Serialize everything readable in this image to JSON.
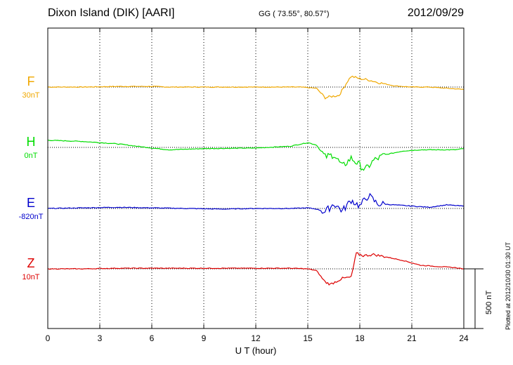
{
  "header": {
    "station": "Dixon Island (DIK)  [AARI]",
    "coords": "GG ( 73.55°,  80.57°)",
    "date": "2012/09/29"
  },
  "plotted_note": "Plotted at 2012/10/30 01:30 UT",
  "scale_label": "500 nT",
  "colors": {
    "F": "#f0a800",
    "H": "#00dd00",
    "E": "#0000cc",
    "Z": "#dd0000"
  },
  "chart_data": {
    "type": "line",
    "xlabel": "U T (hour)",
    "xlim": [
      0,
      24
    ],
    "xticks": [
      "0",
      "3",
      "6",
      "9",
      "12",
      "15",
      "18",
      "21",
      "24"
    ],
    "scale_bar_nT": 500,
    "series": [
      {
        "name": "F",
        "baseline_label": "30nT",
        "x": [
          0,
          2,
          4,
          6,
          7,
          9,
          12,
          14.5,
          15.5,
          16,
          16.3,
          16.8,
          17.3,
          17.5,
          18,
          18.5,
          19,
          20,
          21,
          22,
          23,
          24
        ],
        "values": [
          0,
          0,
          5,
          5,
          0,
          0,
          0,
          0,
          -10,
          -90,
          -80,
          -70,
          50,
          90,
          70,
          60,
          40,
          10,
          0,
          0,
          -10,
          -20
        ]
      },
      {
        "name": "H",
        "baseline_label": "0nT",
        "x": [
          0,
          2,
          4,
          6,
          7,
          9,
          12,
          14,
          15,
          15.5,
          16,
          16.5,
          17,
          17.5,
          18,
          18.3,
          18.8,
          19.5,
          20.5,
          21.5,
          22.5,
          23.5,
          24
        ],
        "values": [
          60,
          50,
          30,
          -5,
          -20,
          -10,
          -5,
          10,
          40,
          20,
          -80,
          -60,
          -160,
          -90,
          -150,
          -190,
          -110,
          -60,
          -30,
          -20,
          -20,
          -20,
          -10
        ]
      },
      {
        "name": "E",
        "baseline_label": "-820nT",
        "x": [
          0,
          2,
          4,
          6,
          8,
          10,
          12,
          14,
          15,
          15.5,
          16,
          16.5,
          17,
          17.5,
          18,
          18.5,
          19,
          20,
          21,
          22,
          23,
          24
        ],
        "values": [
          0,
          5,
          10,
          5,
          0,
          -5,
          0,
          0,
          5,
          -5,
          -30,
          40,
          -20,
          70,
          20,
          110,
          40,
          30,
          20,
          10,
          30,
          20
        ]
      },
      {
        "name": "Z",
        "baseline_label": "10nT",
        "x": [
          0,
          2,
          4,
          6,
          8,
          10,
          12,
          14,
          15,
          15.5,
          16,
          16.3,
          17,
          17.5,
          17.8,
          18.2,
          18.8,
          19.5,
          20.5,
          21.5,
          22.5,
          23.5,
          24
        ],
        "values": [
          0,
          0,
          5,
          5,
          5,
          5,
          5,
          5,
          0,
          -15,
          -110,
          -130,
          -80,
          -70,
          130,
          110,
          120,
          100,
          70,
          30,
          20,
          10,
          0
        ]
      }
    ]
  }
}
